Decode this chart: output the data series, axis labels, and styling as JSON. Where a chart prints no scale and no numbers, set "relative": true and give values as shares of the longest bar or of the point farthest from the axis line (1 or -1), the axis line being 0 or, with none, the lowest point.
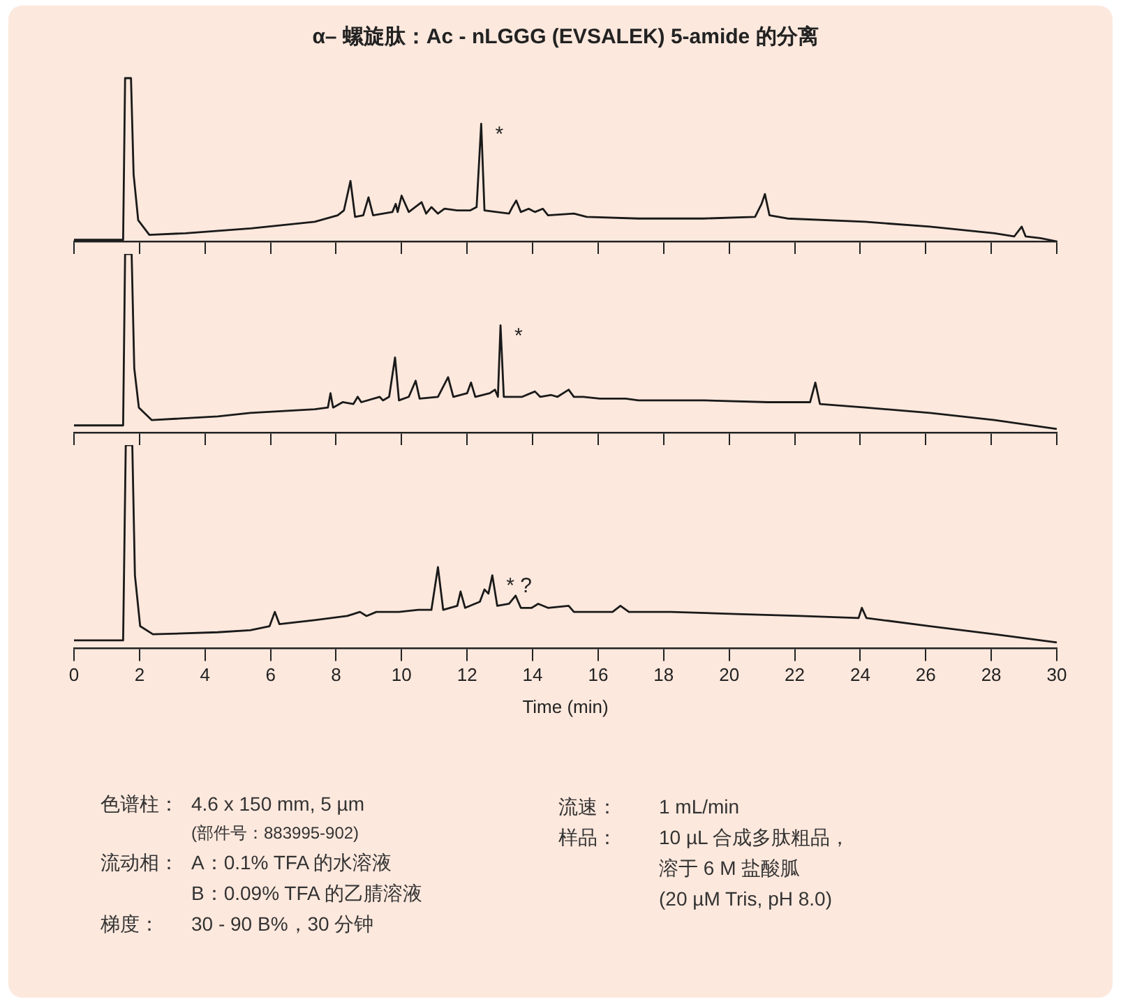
{
  "chart_data": [
    {
      "type": "line",
      "relative": true,
      "title": "α– 螺旋肽：Ac - nLGGG (EVSALEK) 5-amide 的分离",
      "xlim": [
        0,
        30
      ],
      "xticks": [
        0,
        2,
        4,
        6,
        8,
        10,
        12,
        14,
        16,
        18,
        20,
        22,
        24,
        26,
        28,
        30
      ],
      "tick_labels": false,
      "series": [
        {
          "color": "#1a1a1a",
          "x": [
            0,
            1.5,
            1.56,
            1.74,
            1.82,
            1.96,
            2.3,
            3.4,
            5.4,
            7.35,
            8.05,
            8.24,
            8.44,
            8.58,
            8.83,
            8.99,
            9.13,
            9.72,
            9.82,
            9.88,
            10.0,
            10.22,
            10.61,
            10.75,
            10.91,
            11.11,
            11.31,
            11.7,
            12.1,
            12.29,
            12.43,
            12.53,
            13.28,
            13.38,
            13.5,
            13.64,
            13.88,
            14.07,
            14.31,
            14.47,
            15.26,
            15.65,
            17.23,
            19.21,
            20.79,
            20.99,
            21.09,
            21.23,
            21.78,
            24.15,
            26.13,
            28.1,
            28.7,
            28.93,
            29.05,
            29.5,
            30
          ],
          "values": [
            0.01,
            0.01,
            1,
            1,
            0.41,
            0.13,
            0.04,
            0.05,
            0.08,
            0.12,
            0.16,
            0.19,
            0.37,
            0.15,
            0.16,
            0.27,
            0.16,
            0.18,
            0.23,
            0.18,
            0.28,
            0.18,
            0.24,
            0.17,
            0.21,
            0.17,
            0.2,
            0.19,
            0.19,
            0.21,
            0.72,
            0.19,
            0.17,
            0.21,
            0.25,
            0.18,
            0.2,
            0.18,
            0.2,
            0.16,
            0.17,
            0.15,
            0.14,
            0.14,
            0.15,
            0.23,
            0.29,
            0.16,
            0.14,
            0.12,
            0.09,
            0.05,
            0.03,
            0.09,
            0.03,
            0.02,
            0
          ]
        }
      ],
      "annotations": [
        {
          "text": "*",
          "x": 12.43,
          "y": 0.72
        }
      ]
    },
    {
      "type": "line",
      "relative": true,
      "xlim": [
        0,
        30
      ],
      "xticks": [
        0,
        2,
        4,
        6,
        8,
        10,
        12,
        14,
        16,
        18,
        20,
        22,
        24,
        26,
        28,
        30
      ],
      "tick_labels": false,
      "series": [
        {
          "color": "#1a1a1a",
          "x": [
            0,
            1.5,
            1.56,
            1.76,
            1.84,
            1.98,
            2.37,
            4.39,
            5.38,
            7.35,
            7.75,
            7.83,
            7.91,
            8.2,
            8.53,
            8.66,
            8.77,
            9.33,
            9.43,
            9.62,
            9.8,
            9.92,
            10.22,
            10.43,
            10.55,
            11.11,
            11.42,
            11.58,
            12.0,
            12.12,
            12.25,
            12.69,
            12.85,
            12.94,
            13.02,
            13.12,
            13.68,
            14.07,
            14.23,
            14.57,
            14.76,
            15.1,
            15.26,
            15.55,
            16.05,
            16.84,
            17.23,
            19.21,
            21.19,
            22.47,
            22.63,
            22.77,
            24.15,
            26.13,
            28.1,
            30
          ],
          "values": [
            0.04,
            0.04,
            1,
            1,
            0.36,
            0.14,
            0.07,
            0.09,
            0.11,
            0.13,
            0.14,
            0.22,
            0.14,
            0.17,
            0.16,
            0.2,
            0.17,
            0.2,
            0.18,
            0.2,
            0.42,
            0.18,
            0.2,
            0.29,
            0.19,
            0.2,
            0.31,
            0.2,
            0.22,
            0.28,
            0.2,
            0.22,
            0.24,
            0.2,
            0.6,
            0.2,
            0.2,
            0.23,
            0.2,
            0.21,
            0.2,
            0.24,
            0.2,
            0.2,
            0.19,
            0.19,
            0.18,
            0.18,
            0.17,
            0.17,
            0.28,
            0.16,
            0.14,
            0.11,
            0.07,
            0.02
          ]
        }
      ],
      "annotations": [
        {
          "text": "*",
          "x": 13.02,
          "y": 0.6
        }
      ]
    },
    {
      "type": "line",
      "relative": true,
      "xlim": [
        0,
        30
      ],
      "xticks": [
        0,
        2,
        4,
        6,
        8,
        10,
        12,
        14,
        16,
        18,
        20,
        22,
        24,
        26,
        28,
        30
      ],
      "tick_labels": "x",
      "xlabel": "Time (min)",
      "series": [
        {
          "color": "#1a1a1a",
          "x": [
            0,
            1.5,
            1.58,
            1.78,
            1.86,
            2.02,
            2.41,
            4.39,
            5.38,
            5.97,
            6.13,
            6.27,
            7.35,
            8.34,
            8.73,
            8.93,
            9.23,
            9.92,
            10.51,
            10.91,
            11.11,
            11.27,
            11.7,
            11.8,
            11.94,
            12.39,
            12.53,
            12.65,
            12.77,
            12.92,
            13.28,
            13.48,
            13.64,
            13.97,
            14.17,
            14.47,
            15.1,
            15.26,
            16.44,
            16.68,
            16.94,
            18.22,
            20.2,
            22.17,
            23.95,
            24.05,
            24.19,
            26.13,
            28.1,
            30
          ],
          "values": [
            0.04,
            0.04,
            1,
            1,
            0.36,
            0.11,
            0.07,
            0.08,
            0.09,
            0.11,
            0.18,
            0.12,
            0.14,
            0.16,
            0.18,
            0.16,
            0.18,
            0.18,
            0.19,
            0.19,
            0.4,
            0.19,
            0.21,
            0.28,
            0.2,
            0.23,
            0.29,
            0.27,
            0.36,
            0.21,
            0.22,
            0.26,
            0.2,
            0.2,
            0.22,
            0.2,
            0.21,
            0.18,
            0.18,
            0.21,
            0.18,
            0.18,
            0.17,
            0.16,
            0.15,
            0.2,
            0.15,
            0.11,
            0.07,
            0.03
          ]
        }
      ],
      "annotations": [
        {
          "text": "* ?",
          "x": 12.77,
          "y": 0.36
        },
        "色谱柱：",
        "4.6 x 150 mm, 5 µm",
        "(部件号：883995-902)",
        "流动相：",
        "A：0.1% TFA 的水溶液",
        "B：0.09% TFA 的乙腈溶液",
        "梯度：",
        "30 - 90 B%，30 分钟",
        "流速：",
        "1 mL/min",
        "样品：",
        "10 µL 合成多肽粗品，",
        "溶于 6 M 盐酸胍",
        "(20 µM Tris, pH 8.0)"
      ]
    }
  ]
}
